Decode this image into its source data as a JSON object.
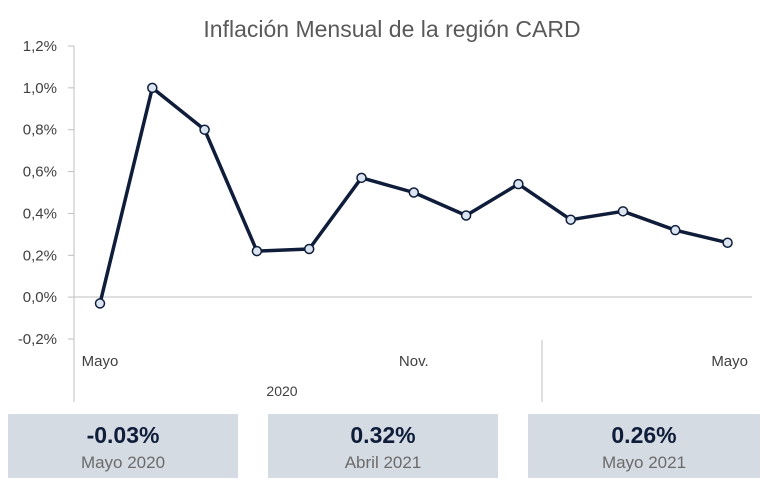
{
  "chart_data": {
    "type": "line",
    "title": "Inflación Mensual de la región CARD",
    "xlabel": "",
    "ylabel": "",
    "ylim": [
      -0.2,
      1.2
    ],
    "yticks": [
      "-0,2%",
      "0,0%",
      "0,2%",
      "0,4%",
      "0,6%",
      "0,8%",
      "1,0%",
      "1,2%"
    ],
    "ytick_values": [
      -0.2,
      0.0,
      0.2,
      0.4,
      0.6,
      0.8,
      1.0,
      1.2
    ],
    "grid": false,
    "x_tick_labels": [
      {
        "index": 0,
        "label": "Mayo"
      },
      {
        "index": 6,
        "label": "Nov."
      },
      {
        "index": 12,
        "label": "Mayo"
      }
    ],
    "year_label": "2020",
    "series": [
      {
        "color": "#0f1d3a",
        "values": [
          -0.03,
          1.0,
          0.8,
          0.22,
          0.23,
          0.57,
          0.5,
          0.39,
          0.54,
          0.37,
          0.41,
          0.32,
          0.26
        ]
      }
    ]
  },
  "cards": [
    {
      "value": "-0.03%",
      "label": "Mayo 2020"
    },
    {
      "value": "0.32%",
      "label": "Abril 2021"
    },
    {
      "value": "0.26%",
      "label": "Mayo 2021"
    }
  ],
  "colors": {
    "line": "#0f1d3a",
    "marker_fill": "#dbe5f1",
    "axis": "#bfbfbf",
    "card_bg": "#d5dbe3",
    "card_value": "#0f1d3a",
    "card_label": "#6b6b6b"
  }
}
